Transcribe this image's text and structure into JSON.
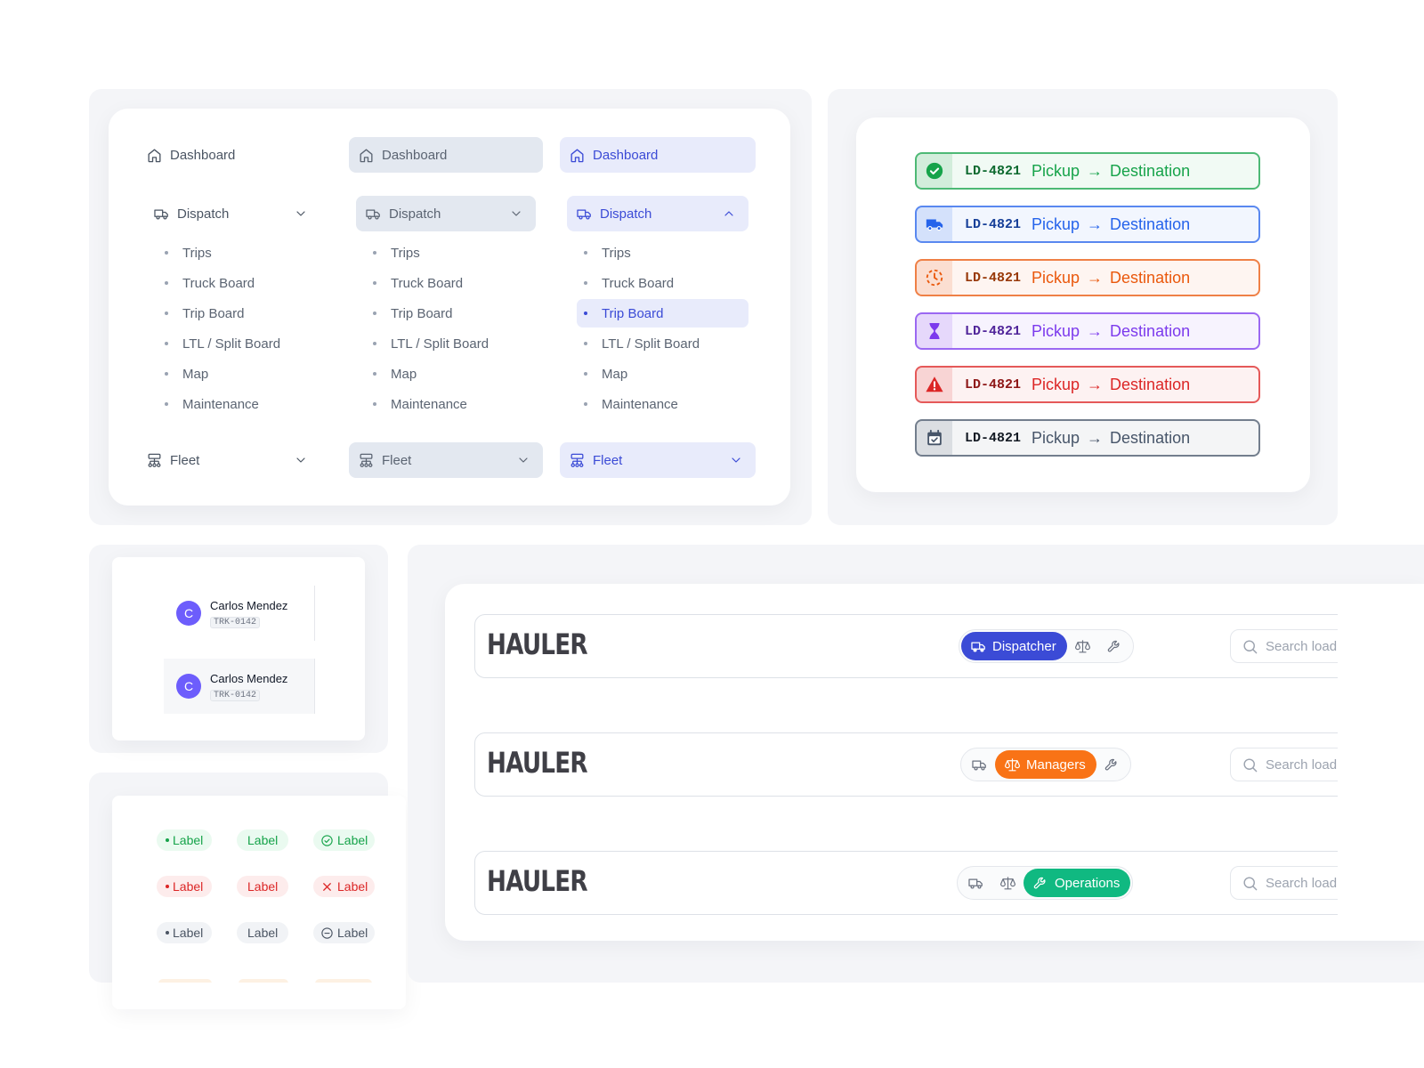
{
  "nav": {
    "dashboard": "Dashboard",
    "dispatch": "Dispatch",
    "fleet": "Fleet",
    "sub_items": [
      "Trips",
      "Truck Board",
      "Trip Board",
      "LTL / Split Board",
      "Map",
      "Maintenance"
    ],
    "states": [
      "default",
      "hover",
      "active"
    ],
    "selected_sub_item": "Trip Board",
    "accent_color": "#3b4bd6"
  },
  "loads": [
    {
      "id": "LD-4821",
      "pickup": "Pickup",
      "arrow": "→",
      "destination": "Destination",
      "status_icon": "check-circle-icon",
      "color": "#16a34a"
    },
    {
      "id": "LD-4821",
      "pickup": "Pickup",
      "arrow": "→",
      "destination": "Destination",
      "status_icon": "truck-icon",
      "color": "#2563eb"
    },
    {
      "id": "LD-4821",
      "pickup": "Pickup",
      "arrow": "→",
      "destination": "Destination",
      "status_icon": "clock-dashed-icon",
      "color": "#ea580c"
    },
    {
      "id": "LD-4821",
      "pickup": "Pickup",
      "arrow": "→",
      "destination": "Destination",
      "status_icon": "hourglass-icon",
      "color": "#7c3aed"
    },
    {
      "id": "LD-4821",
      "pickup": "Pickup",
      "arrow": "→",
      "destination": "Destination",
      "status_icon": "warning-triangle-icon",
      "color": "#dc2626"
    },
    {
      "id": "LD-4821",
      "pickup": "Pickup",
      "arrow": "→",
      "destination": "Destination",
      "status_icon": "calendar-check-icon",
      "color": "#475569"
    }
  ],
  "users": [
    {
      "initial": "C",
      "name": "Carlos Mendez",
      "id": "TRK-0142"
    },
    {
      "initial": "C",
      "name": "Carlos Mendez",
      "id": "TRK-0142"
    }
  ],
  "badges": {
    "label": "Label",
    "rows": [
      "green",
      "red",
      "gray"
    ]
  },
  "headers": [
    {
      "logo": "HAULER",
      "active_role": "Dispatcher",
      "color": "#3b4bd6",
      "search_placeholder": "Search load, driver, truck…"
    },
    {
      "logo": "HAULER",
      "active_role": "Managers",
      "color": "#f97316",
      "search_placeholder": "Search load, driver, truck…"
    },
    {
      "logo": "HAULER",
      "active_role": "Operations",
      "color": "#10b981",
      "search_placeholder": "Search load, driver, truck…"
    }
  ]
}
